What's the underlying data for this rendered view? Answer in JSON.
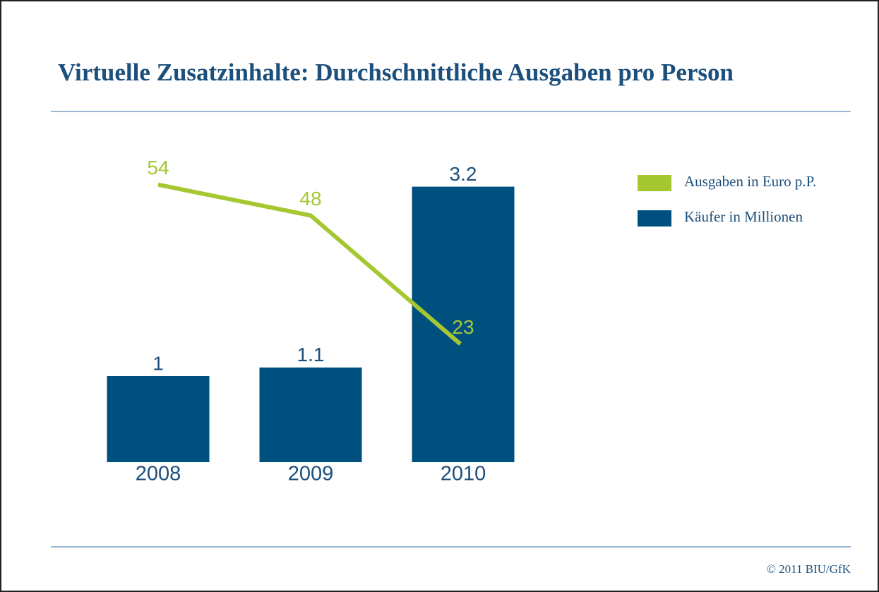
{
  "chart_data": {
    "type": "bar_line",
    "title": "Virtuelle Zusatzinhalte: Durchschnittliche Ausgaben pro Person",
    "categories": [
      "2008",
      "2009",
      "2010"
    ],
    "series": [
      {
        "name": "Ausgaben in Euro p.P.",
        "color": "#a5c832",
        "type": "line",
        "axis": "y2",
        "values": [
          54,
          48,
          23
        ]
      },
      {
        "name": "Käufer in Millionen",
        "color": "#00507f",
        "type": "bar",
        "values": [
          1,
          1.1,
          3.2
        ]
      }
    ],
    "ylim": [
      0,
      4
    ],
    "y2lim": [
      0,
      67
    ],
    "legend": "right",
    "source": "© 2011 BIU/GfK"
  }
}
